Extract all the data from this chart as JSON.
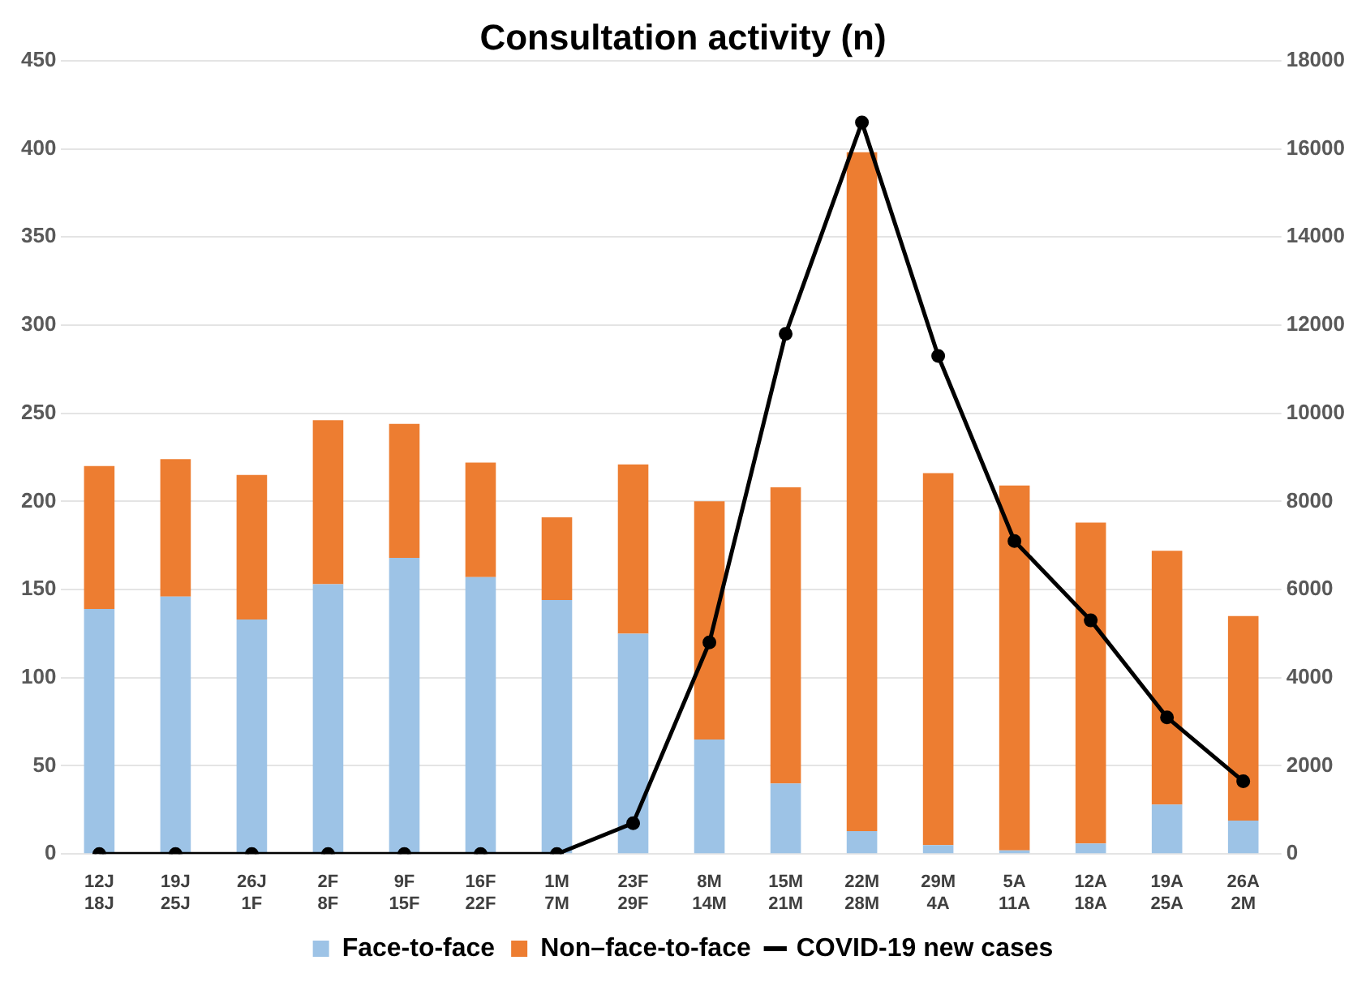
{
  "chart_data": {
    "type": "bar",
    "title": "Consultation activity (n)",
    "stacked": true,
    "categories": [
      "12J\n18J",
      "19J\n25J",
      "26J\n1F",
      "2F\n8F",
      "9F\n15F",
      "16F\n22F",
      "1M\n7M",
      "23F\n29F",
      "8M\n14M",
      "15M\n21M",
      "22M\n28M",
      "29M\n4A",
      "5A\n11A",
      "12A\n18A",
      "19A\n25A",
      "26A\n2M"
    ],
    "series": [
      {
        "name": "Face-to-face",
        "color": "#9dc3e6",
        "values": [
          139,
          146,
          133,
          153,
          168,
          157,
          144,
          125,
          65,
          40,
          13,
          5,
          2,
          6,
          28,
          19
        ]
      },
      {
        "name": "Non–face-to-face",
        "color": "#ed7d31",
        "values": [
          81,
          78,
          82,
          93,
          76,
          65,
          47,
          96,
          135,
          168,
          385,
          211,
          207,
          182,
          144,
          116
        ]
      },
      {
        "name": "COVID-19 new cases",
        "type": "line",
        "axis": "y2",
        "color": "#000000",
        "values": [
          0,
          0,
          0,
          0,
          0,
          0,
          0,
          700,
          4800,
          11800,
          16600,
          11300,
          7100,
          5300,
          3100,
          1650
        ]
      }
    ],
    "ylim": [
      0,
      450
    ],
    "yticks": [
      0,
      50,
      100,
      150,
      200,
      250,
      300,
      350,
      400,
      450
    ],
    "y2lim": [
      0,
      18000
    ],
    "y2ticks": [
      0,
      2000,
      4000,
      6000,
      8000,
      10000,
      12000,
      14000,
      16000,
      18000
    ],
    "grid": "y",
    "legend": "bottom",
    "marker": "circle"
  }
}
